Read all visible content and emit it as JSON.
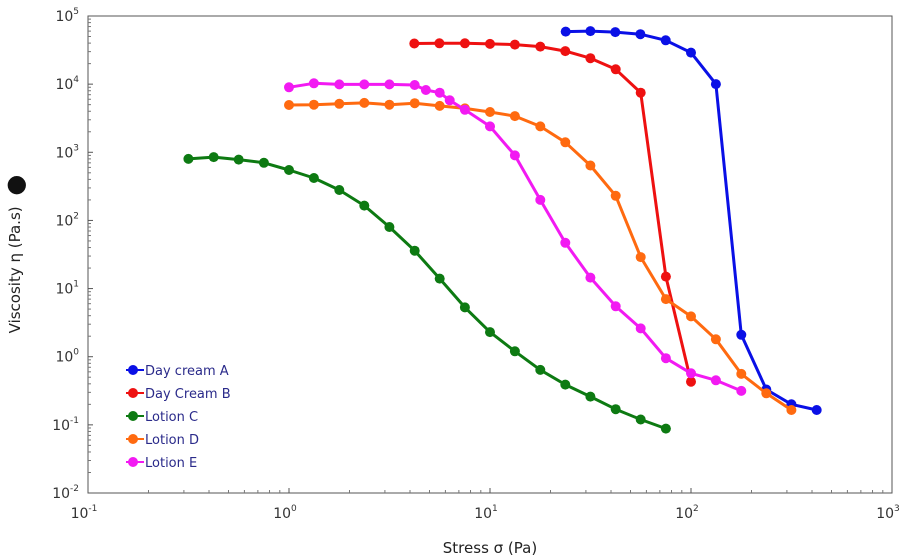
{
  "chart_data": {
    "type": "line",
    "title": "",
    "xlabel": "Stress σ (Pa)",
    "ylabel": "Viscosity η (Pa.s)",
    "ylabel_marker": "●",
    "x_scale": "log",
    "y_scale": "log",
    "xlim": [
      0.1,
      1000
    ],
    "ylim": [
      0.01,
      100000
    ],
    "x_ticks": [
      {
        "base": "10",
        "exp": "-1",
        "value": 0.1
      },
      {
        "base": "10",
        "exp": "0",
        "value": 1
      },
      {
        "base": "10",
        "exp": "1",
        "value": 10
      },
      {
        "base": "10",
        "exp": "2",
        "value": 100
      },
      {
        "base": "10",
        "exp": "3",
        "value": 1000
      }
    ],
    "y_ticks": [
      {
        "base": "10",
        "exp": "-2",
        "value": 0.01
      },
      {
        "base": "10",
        "exp": "-1",
        "value": 0.1
      },
      {
        "base": "10",
        "exp": "0",
        "value": 1
      },
      {
        "base": "10",
        "exp": "1",
        "value": 10
      },
      {
        "base": "10",
        "exp": "2",
        "value": 100
      },
      {
        "base": "10",
        "exp": "3",
        "value": 1000
      },
      {
        "base": "10",
        "exp": "4",
        "value": 10000
      },
      {
        "base": "10",
        "exp": "5",
        "value": 100000
      }
    ],
    "grid": false,
    "legend_position": "bottom-left",
    "series": [
      {
        "name": "Day cream A",
        "color": "#0a10e6",
        "points": [
          [
            23.8,
            59000
          ],
          [
            31.6,
            60000
          ],
          [
            42,
            58000
          ],
          [
            56,
            54000
          ],
          [
            74.8,
            44000
          ],
          [
            100,
            29000
          ],
          [
            133,
            10000
          ],
          [
            178,
            2.1
          ],
          [
            237,
            0.33
          ],
          [
            316,
            0.2
          ],
          [
            422,
            0.165
          ]
        ]
      },
      {
        "name": "Day Cream B",
        "color": "#ee1111",
        "points": [
          [
            4.2,
            39500
          ],
          [
            5.6,
            39800
          ],
          [
            7.5,
            39700
          ],
          [
            10,
            38900
          ],
          [
            13.3,
            38000
          ],
          [
            17.8,
            35500
          ],
          [
            23.7,
            30500
          ],
          [
            31.6,
            24000
          ],
          [
            42.2,
            16500
          ],
          [
            56.2,
            7500
          ],
          [
            75,
            15
          ],
          [
            100,
            0.43
          ]
        ]
      },
      {
        "name": "Lotion C",
        "color": "#0d7a12",
        "points": [
          [
            0.316,
            800
          ],
          [
            0.422,
            850
          ],
          [
            0.562,
            780
          ],
          [
            0.75,
            700
          ],
          [
            1,
            550
          ],
          [
            1.33,
            420
          ],
          [
            1.78,
            280
          ],
          [
            2.37,
            165
          ],
          [
            3.16,
            80
          ],
          [
            4.22,
            36
          ],
          [
            5.62,
            14
          ],
          [
            7.5,
            5.3
          ],
          [
            10,
            2.3
          ],
          [
            13.3,
            1.2
          ],
          [
            17.8,
            0.64
          ],
          [
            23.7,
            0.39
          ],
          [
            31.6,
            0.26
          ],
          [
            42.2,
            0.17
          ],
          [
            56.2,
            0.12
          ],
          [
            75,
            0.088
          ]
        ]
      },
      {
        "name": "Lotion D",
        "color": "#ff6a10",
        "points": [
          [
            1,
            4950
          ],
          [
            1.33,
            5000
          ],
          [
            1.78,
            5150
          ],
          [
            2.37,
            5300
          ],
          [
            3.16,
            5000
          ],
          [
            4.22,
            5250
          ],
          [
            5.62,
            4800
          ],
          [
            7.5,
            4400
          ],
          [
            10,
            3900
          ],
          [
            13.3,
            3400
          ],
          [
            17.8,
            2400
          ],
          [
            23.7,
            1400
          ],
          [
            31.6,
            640
          ],
          [
            42.2,
            230
          ],
          [
            56.2,
            29
          ],
          [
            75,
            7
          ],
          [
            100,
            3.9
          ],
          [
            133,
            1.8
          ],
          [
            178,
            0.56
          ],
          [
            237,
            0.29
          ],
          [
            316,
            0.165
          ]
        ]
      },
      {
        "name": "Lotion E",
        "color": "#f21af2",
        "points": [
          [
            1,
            9000
          ],
          [
            1.33,
            10300
          ],
          [
            1.78,
            9900
          ],
          [
            2.37,
            9900
          ],
          [
            3.16,
            9900
          ],
          [
            4.22,
            9700
          ],
          [
            4.8,
            8200
          ],
          [
            5.62,
            7500
          ],
          [
            6.3,
            5800
          ],
          [
            7.5,
            4200
          ],
          [
            10,
            2400
          ],
          [
            13.3,
            900
          ],
          [
            17.8,
            200
          ],
          [
            23.7,
            47
          ],
          [
            31.6,
            14.5
          ],
          [
            42.2,
            5.5
          ],
          [
            56.2,
            2.6
          ],
          [
            75,
            0.95
          ],
          [
            100,
            0.57
          ],
          [
            133,
            0.45
          ],
          [
            178,
            0.315
          ]
        ]
      }
    ]
  }
}
